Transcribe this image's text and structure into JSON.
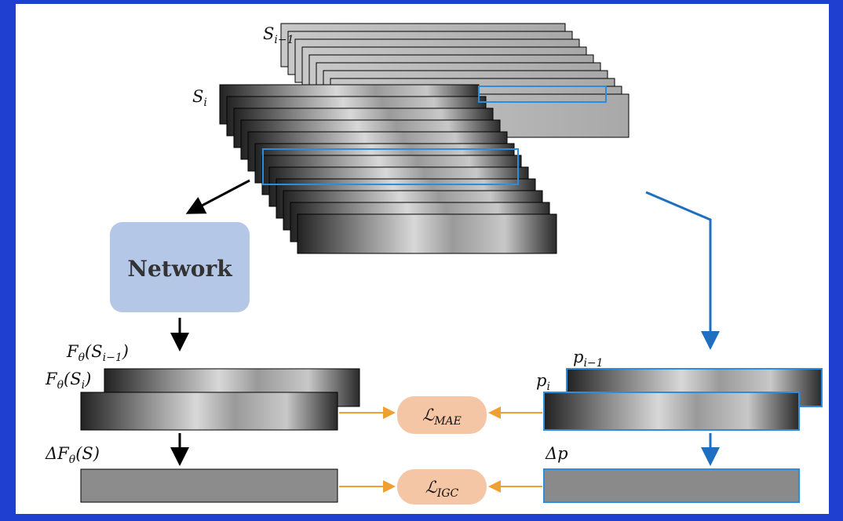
{
  "labels": {
    "s_prev": [
      "S",
      "i−1"
    ],
    "s_cur": [
      "S",
      "i"
    ],
    "f_prev": [
      "F",
      "θ",
      "(S",
      "i−1",
      ")"
    ],
    "f_cur": [
      "F",
      "θ",
      "(S",
      "i",
      ")"
    ],
    "delta_f": [
      "ΔF",
      "θ",
      "(S)"
    ],
    "p_prev": [
      "p",
      "i−1"
    ],
    "p_cur": [
      "p",
      "i"
    ],
    "delta_p": [
      "Δp"
    ],
    "loss_mae": [
      "ℒ",
      "MAE"
    ],
    "loss_igc": [
      "ℒ",
      "IGC"
    ]
  },
  "network": {
    "label": "Network"
  }
}
